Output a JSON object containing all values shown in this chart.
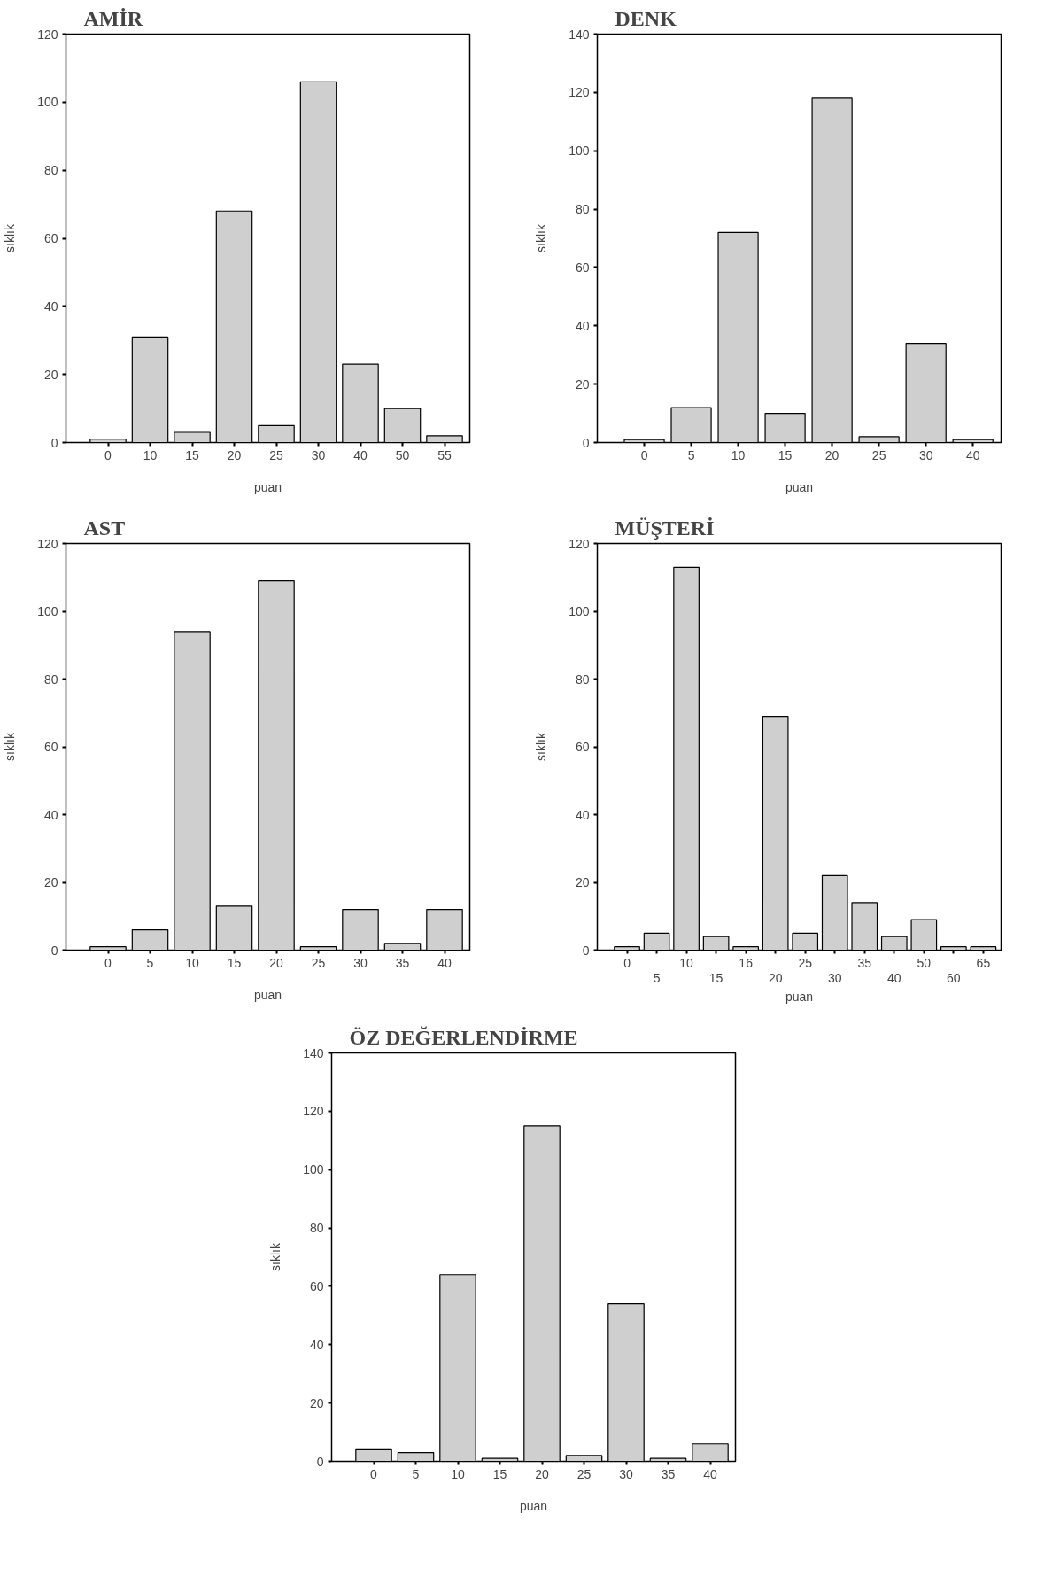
{
  "chart_data": [
    {
      "type": "bar",
      "title": "AMİR",
      "xlabel": "puan",
      "ylabel": "sıklık",
      "categories": [
        "0",
        "10",
        "15",
        "20",
        "25",
        "30",
        "40",
        "50",
        "55"
      ],
      "values": [
        1,
        31,
        3,
        68,
        5,
        106,
        23,
        10,
        2
      ],
      "color": "#cfcfcf",
      "ylim": [
        0,
        120
      ],
      "yticks": [
        0,
        20,
        40,
        60,
        80,
        100,
        120
      ],
      "grid": false
    },
    {
      "type": "bar",
      "title": "DENK",
      "xlabel": "puan",
      "ylabel": "sıklık",
      "categories": [
        "0",
        "5",
        "10",
        "15",
        "20",
        "25",
        "30",
        "40"
      ],
      "values": [
        1,
        12,
        72,
        10,
        118,
        2,
        34,
        1
      ],
      "color": "#cfcfcf",
      "ylim": [
        0,
        140
      ],
      "yticks": [
        0,
        20,
        40,
        60,
        80,
        100,
        120,
        140
      ],
      "grid": false
    },
    {
      "type": "bar",
      "title": "AST",
      "xlabel": "puan",
      "ylabel": "sıklık",
      "categories": [
        "0",
        "5",
        "10",
        "15",
        "20",
        "25",
        "30",
        "35",
        "40"
      ],
      "values": [
        1,
        6,
        94,
        13,
        109,
        1,
        12,
        2,
        12
      ],
      "color": "#cfcfcf",
      "ylim": [
        0,
        120
      ],
      "yticks": [
        0,
        20,
        40,
        60,
        80,
        100,
        120
      ],
      "grid": false
    },
    {
      "type": "bar",
      "title": "MÜŞTERİ",
      "xlabel": "puan",
      "ylabel": "sıklık",
      "categories": [
        "0",
        "5",
        "10",
        "15",
        "16",
        "20",
        "25",
        "30",
        "35",
        "40",
        "50",
        "60",
        "65"
      ],
      "values": [
        1,
        5,
        113,
        4,
        1,
        69,
        5,
        22,
        14,
        4,
        9,
        1,
        1
      ],
      "color": "#cfcfcf",
      "ylim": [
        0,
        120
      ],
      "yticks": [
        0,
        20,
        40,
        60,
        80,
        100,
        120
      ],
      "grid": false
    },
    {
      "type": "bar",
      "title": "ÖZ DEĞERLENDİRME",
      "xlabel": "puan",
      "ylabel": "sıklık",
      "categories": [
        "0",
        "5",
        "10",
        "15",
        "20",
        "25",
        "30",
        "35",
        "40"
      ],
      "values": [
        4,
        3,
        64,
        1,
        115,
        2,
        54,
        1,
        6
      ],
      "color": "#cfcfcf",
      "ylim": [
        0,
        140
      ],
      "yticks": [
        0,
        20,
        40,
        60,
        80,
        100,
        120,
        140
      ],
      "grid": false
    }
  ]
}
